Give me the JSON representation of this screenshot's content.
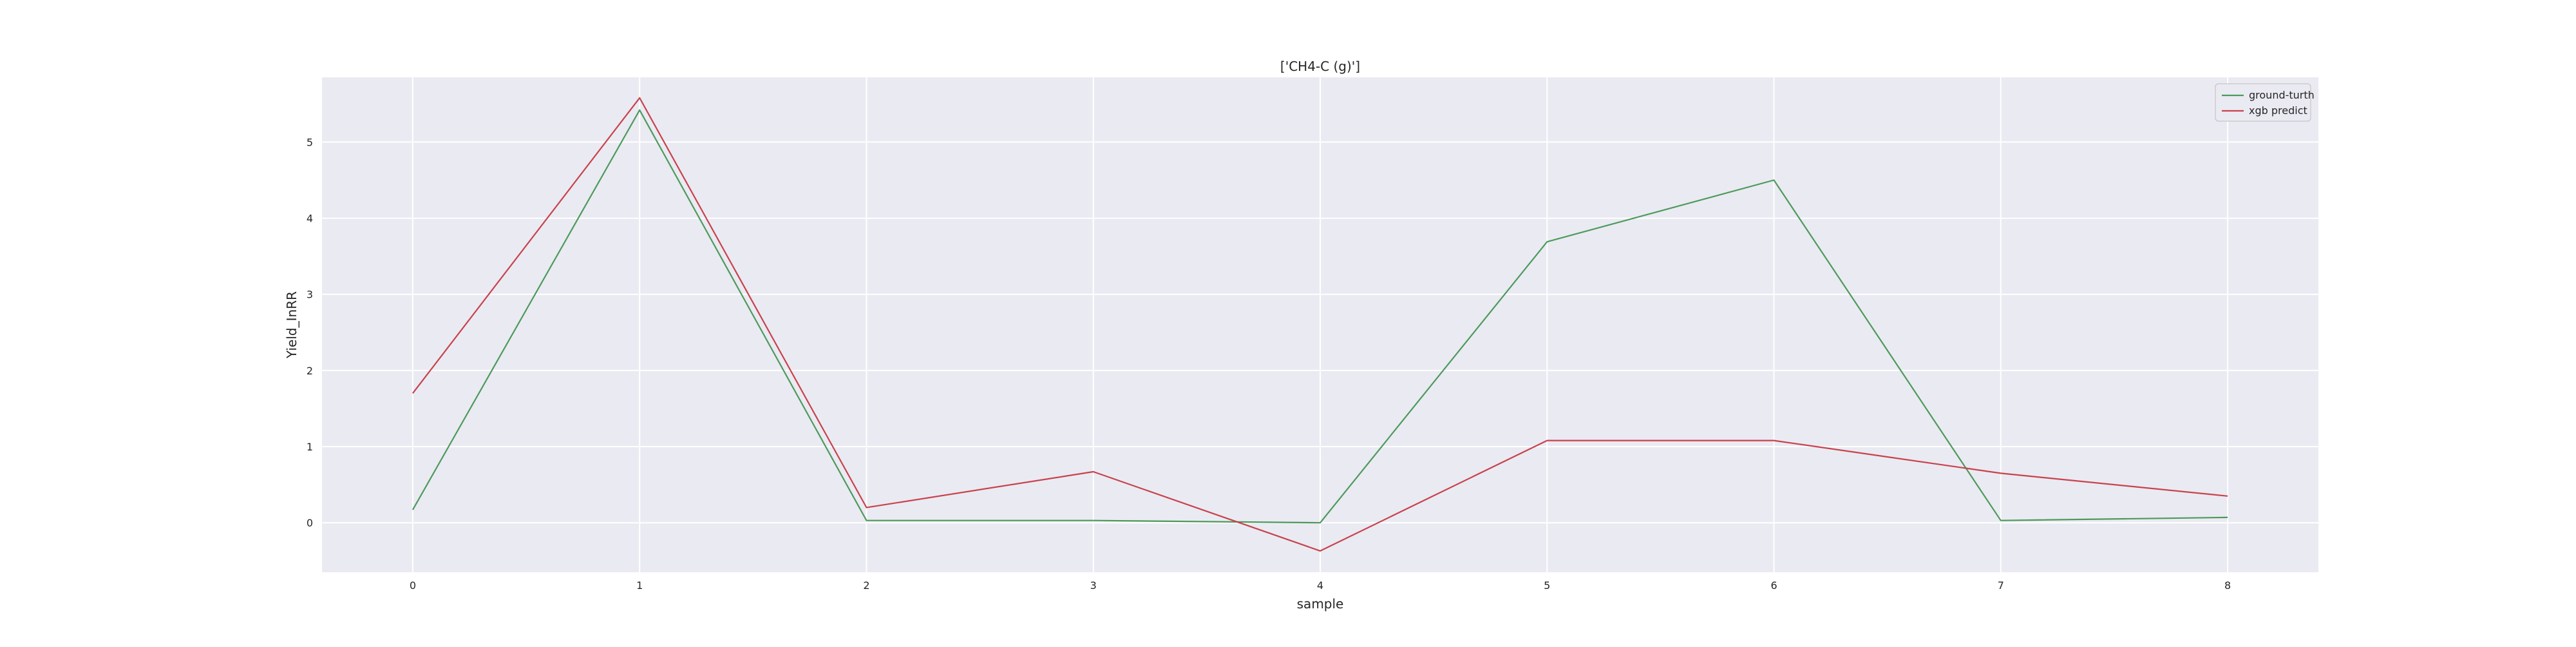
{
  "chart_data": {
    "type": "line",
    "title": "['CH4-C (g)']",
    "xlabel": "sample",
    "ylabel": "Yield_InRR",
    "x": [
      0,
      1,
      2,
      3,
      4,
      5,
      6,
      7,
      8
    ],
    "xlim": [
      -0.4,
      8.4
    ],
    "ylim": [
      -0.65,
      5.85
    ],
    "x_ticks": [
      0,
      1,
      2,
      3,
      4,
      5,
      6,
      7,
      8
    ],
    "y_ticks": [
      0,
      1,
      2,
      3,
      4,
      5
    ],
    "grid": true,
    "legend_position": "top-right",
    "series": [
      {
        "name": "ground-turth",
        "color": "#4c9a5b",
        "values": [
          0.17,
          5.42,
          0.03,
          0.03,
          0.0,
          3.69,
          4.5,
          0.03,
          0.07
        ]
      },
      {
        "name": "xgb predict",
        "color": "#c8424c",
        "values": [
          1.7,
          5.58,
          0.2,
          0.67,
          -0.37,
          1.08,
          1.08,
          0.65,
          0.35
        ]
      }
    ]
  },
  "colors": {
    "plot_background": "#eaeaf2",
    "grid": "#ffffff"
  }
}
